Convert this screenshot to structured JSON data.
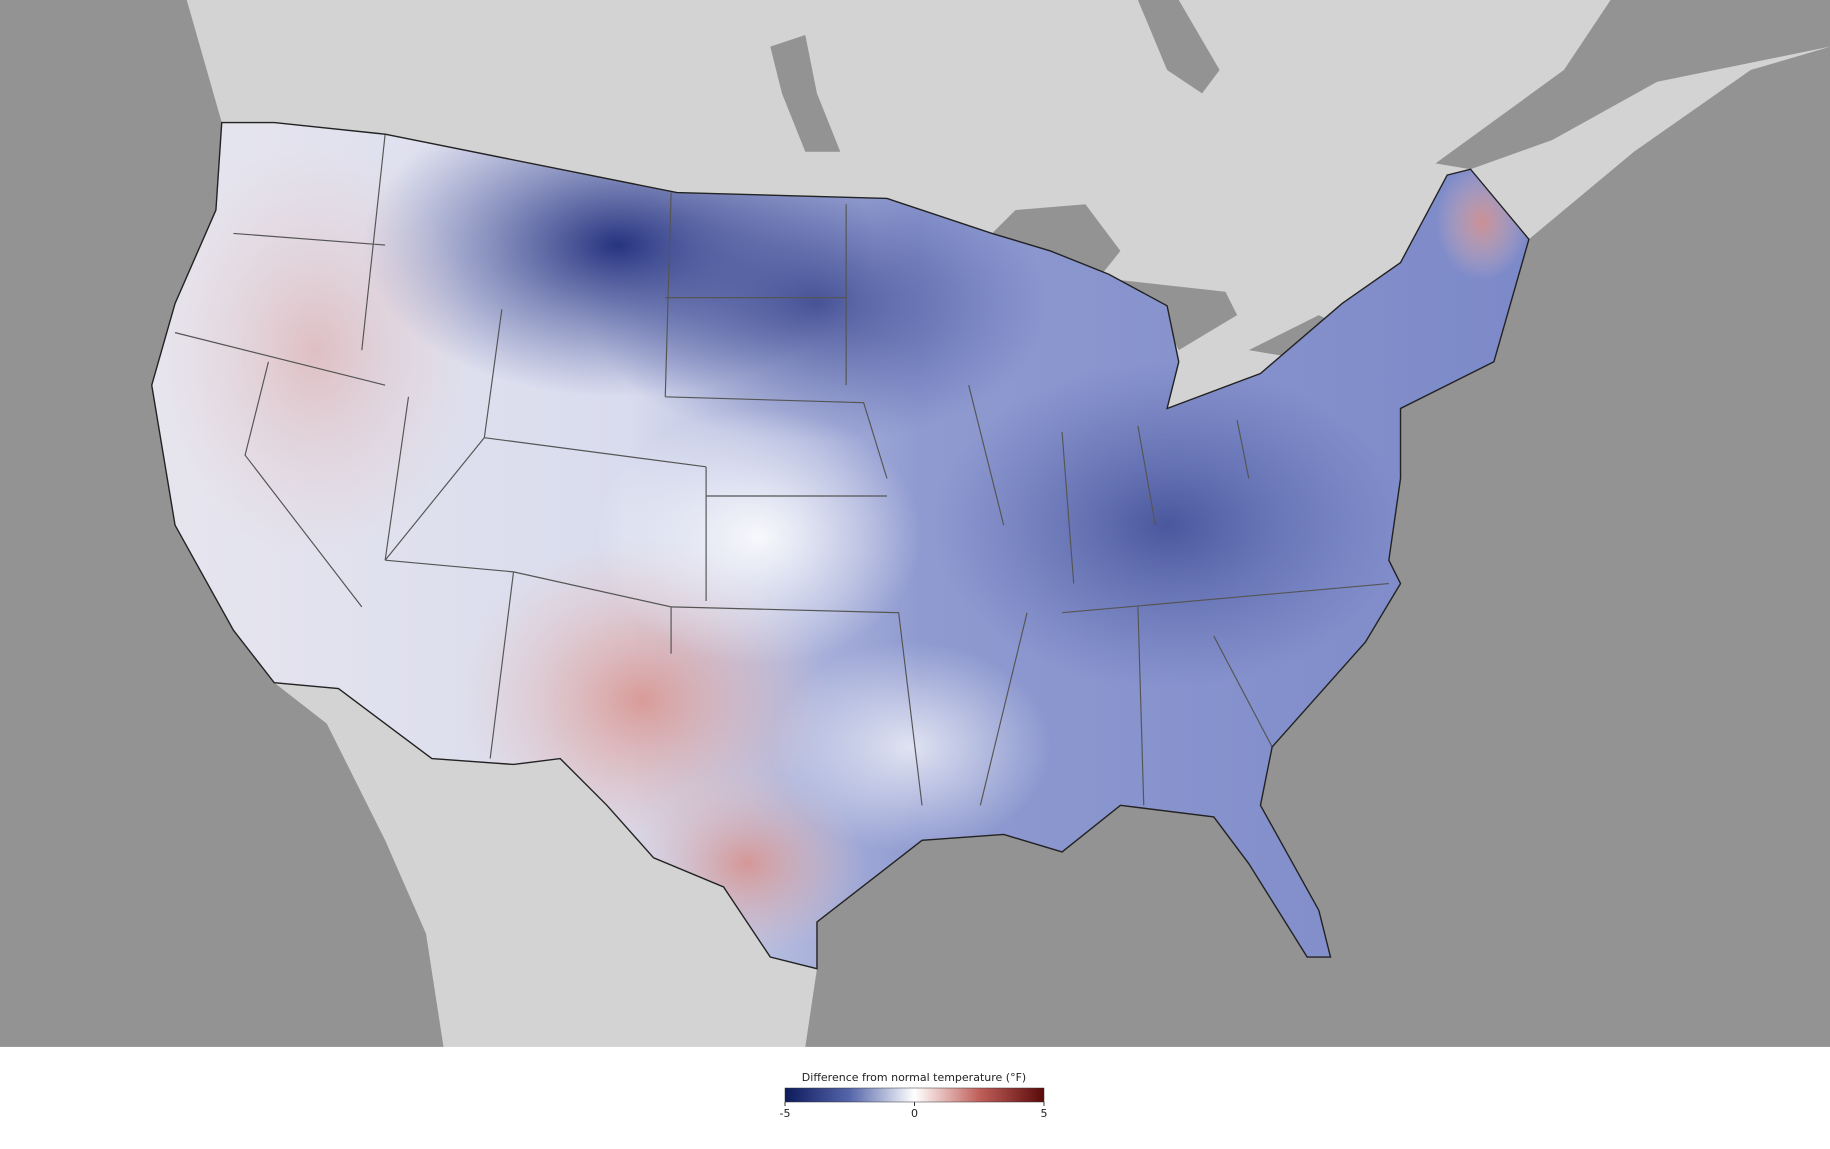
{
  "legend": {
    "title": "Difference from normal temperature (°F)",
    "lim": [
      -5,
      5
    ],
    "ticks": [
      -5,
      0,
      5
    ],
    "colors": [
      "#0d1a5c",
      "#5566aa",
      "#ffffff",
      "#c0605a",
      "#5a0a0a"
    ]
  }
}
